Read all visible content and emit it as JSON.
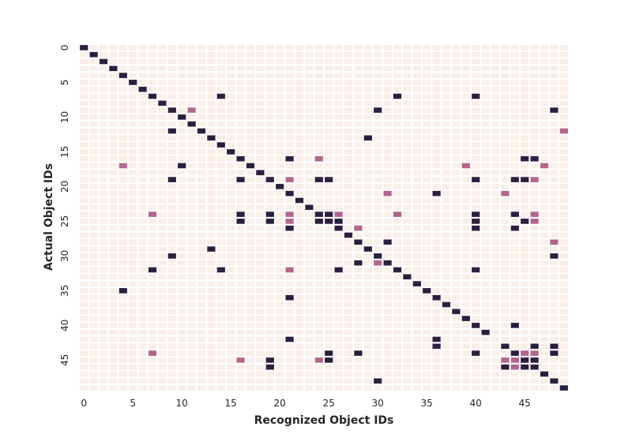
{
  "chart_data": {
    "type": "heatmap",
    "title": "",
    "xlabel": "Recognized Object IDs",
    "ylabel": "Actual Object IDs",
    "n": 50,
    "x_ticks": [
      0,
      5,
      10,
      15,
      20,
      25,
      30,
      35,
      40,
      45
    ],
    "y_ticks": [
      0,
      5,
      10,
      15,
      20,
      25,
      30,
      35,
      40,
      45
    ],
    "grid": false,
    "colors": {
      "zero": "#faeee8",
      "mid": "#b3668a",
      "high": "#2b1f3e",
      "gap": "#ffffff"
    },
    "cells": [
      [
        0,
        0,
        1.0
      ],
      [
        1,
        1,
        1.0
      ],
      [
        2,
        2,
        1.0
      ],
      [
        3,
        3,
        1.0
      ],
      [
        4,
        4,
        1.0
      ],
      [
        5,
        5,
        1.0
      ],
      [
        6,
        6,
        1.0
      ],
      [
        7,
        7,
        1.0
      ],
      [
        7,
        14,
        1.0
      ],
      [
        7,
        32,
        1.0
      ],
      [
        7,
        40,
        1.0
      ],
      [
        8,
        8,
        1.0
      ],
      [
        9,
        9,
        1.0
      ],
      [
        9,
        11,
        0.5
      ],
      [
        9,
        30,
        1.0
      ],
      [
        9,
        48,
        1.0
      ],
      [
        10,
        10,
        1.0
      ],
      [
        11,
        11,
        1.0
      ],
      [
        12,
        9,
        1.0
      ],
      [
        12,
        12,
        1.0
      ],
      [
        12,
        49,
        0.5
      ],
      [
        13,
        13,
        1.0
      ],
      [
        13,
        29,
        1.0
      ],
      [
        14,
        14,
        1.0
      ],
      [
        15,
        15,
        1.0
      ],
      [
        16,
        16,
        1.0
      ],
      [
        16,
        21,
        1.0
      ],
      [
        16,
        24,
        0.5
      ],
      [
        16,
        45,
        1.0
      ],
      [
        16,
        46,
        1.0
      ],
      [
        17,
        4,
        0.5
      ],
      [
        17,
        10,
        1.0
      ],
      [
        17,
        17,
        1.0
      ],
      [
        17,
        39,
        0.5
      ],
      [
        17,
        47,
        0.5
      ],
      [
        18,
        18,
        1.0
      ],
      [
        19,
        9,
        1.0
      ],
      [
        19,
        16,
        1.0
      ],
      [
        19,
        19,
        1.0
      ],
      [
        19,
        21,
        0.5
      ],
      [
        19,
        24,
        1.0
      ],
      [
        19,
        25,
        1.0
      ],
      [
        19,
        40,
        1.0
      ],
      [
        19,
        44,
        1.0
      ],
      [
        19,
        45,
        1.0
      ],
      [
        19,
        46,
        0.5
      ],
      [
        20,
        20,
        1.0
      ],
      [
        21,
        21,
        1.0
      ],
      [
        21,
        31,
        0.5
      ],
      [
        21,
        36,
        1.0
      ],
      [
        21,
        43,
        0.5
      ],
      [
        22,
        22,
        1.0
      ],
      [
        23,
        23,
        1.0
      ],
      [
        24,
        7,
        0.5
      ],
      [
        24,
        16,
        1.0
      ],
      [
        24,
        19,
        1.0
      ],
      [
        24,
        21,
        0.5
      ],
      [
        24,
        24,
        1.0
      ],
      [
        24,
        25,
        1.0
      ],
      [
        24,
        26,
        0.5
      ],
      [
        24,
        32,
        0.5
      ],
      [
        24,
        40,
        1.0
      ],
      [
        24,
        44,
        1.0
      ],
      [
        24,
        46,
        0.5
      ],
      [
        25,
        16,
        1.0
      ],
      [
        25,
        19,
        1.0
      ],
      [
        25,
        21,
        0.5
      ],
      [
        25,
        24,
        1.0
      ],
      [
        25,
        25,
        1.0
      ],
      [
        25,
        26,
        1.0
      ],
      [
        25,
        40,
        1.0
      ],
      [
        25,
        45,
        1.0
      ],
      [
        25,
        46,
        0.5
      ],
      [
        26,
        21,
        1.0
      ],
      [
        26,
        26,
        1.0
      ],
      [
        26,
        28,
        0.5
      ],
      [
        26,
        40,
        1.0
      ],
      [
        26,
        44,
        1.0
      ],
      [
        27,
        27,
        1.0
      ],
      [
        28,
        28,
        1.0
      ],
      [
        28,
        31,
        1.0
      ],
      [
        28,
        48,
        0.5
      ],
      [
        29,
        13,
        1.0
      ],
      [
        29,
        29,
        1.0
      ],
      [
        30,
        9,
        1.0
      ],
      [
        30,
        30,
        1.0
      ],
      [
        30,
        48,
        1.0
      ],
      [
        31,
        28,
        1.0
      ],
      [
        31,
        30,
        0.5
      ],
      [
        31,
        31,
        1.0
      ],
      [
        32,
        7,
        1.0
      ],
      [
        32,
        14,
        1.0
      ],
      [
        32,
        21,
        0.5
      ],
      [
        32,
        26,
        1.0
      ],
      [
        32,
        32,
        1.0
      ],
      [
        32,
        40,
        1.0
      ],
      [
        33,
        33,
        1.0
      ],
      [
        34,
        34,
        1.0
      ],
      [
        35,
        4,
        1.0
      ],
      [
        35,
        35,
        1.0
      ],
      [
        36,
        21,
        1.0
      ],
      [
        36,
        36,
        1.0
      ],
      [
        37,
        37,
        1.0
      ],
      [
        38,
        38,
        1.0
      ],
      [
        39,
        39,
        1.0
      ],
      [
        40,
        40,
        1.0
      ],
      [
        40,
        44,
        1.0
      ],
      [
        41,
        41,
        1.0
      ],
      [
        42,
        21,
        1.0
      ],
      [
        42,
        36,
        1.0
      ],
      [
        43,
        36,
        1.0
      ],
      [
        43,
        43,
        1.0
      ],
      [
        43,
        46,
        1.0
      ],
      [
        43,
        48,
        1.0
      ],
      [
        44,
        7,
        0.5
      ],
      [
        44,
        25,
        1.0
      ],
      [
        44,
        28,
        1.0
      ],
      [
        44,
        40,
        1.0
      ],
      [
        44,
        44,
        1.0
      ],
      [
        44,
        45,
        0.5
      ],
      [
        44,
        46,
        0.5
      ],
      [
        44,
        48,
        1.0
      ],
      [
        45,
        16,
        0.5
      ],
      [
        45,
        19,
        1.0
      ],
      [
        45,
        24,
        0.5
      ],
      [
        45,
        25,
        1.0
      ],
      [
        45,
        43,
        0.5
      ],
      [
        45,
        44,
        0.5
      ],
      [
        45,
        45,
        1.0
      ],
      [
        45,
        46,
        1.0
      ],
      [
        46,
        19,
        1.0
      ],
      [
        46,
        43,
        1.0
      ],
      [
        46,
        44,
        0.5
      ],
      [
        46,
        45,
        1.0
      ],
      [
        46,
        46,
        1.0
      ],
      [
        47,
        47,
        1.0
      ],
      [
        48,
        30,
        1.0
      ],
      [
        48,
        48,
        1.0
      ],
      [
        49,
        49,
        1.0
      ]
    ]
  }
}
